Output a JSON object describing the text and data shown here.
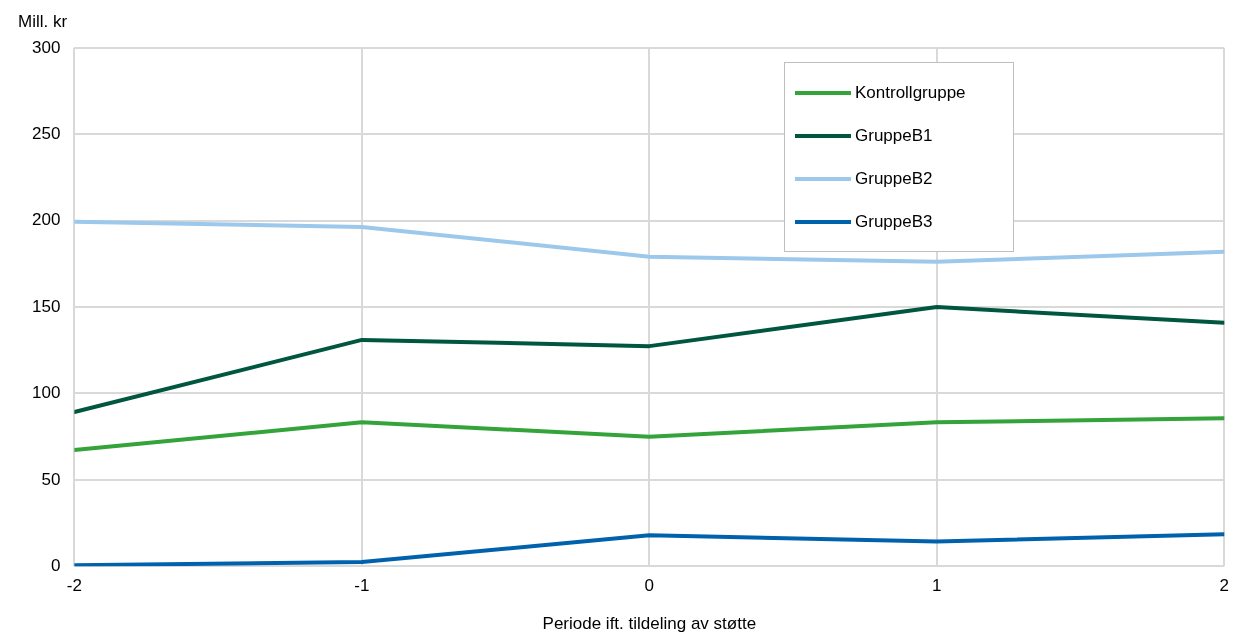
{
  "chart_data": {
    "type": "line",
    "xlabel": "Periode ift. tildeling av støtte",
    "ylabel": "Mill. kr",
    "x": [
      -2,
      -1,
      0,
      1,
      2
    ],
    "xlim": [
      -2,
      2
    ],
    "xticks": [
      -2,
      -1,
      0,
      1,
      2
    ],
    "ylim": [
      0,
      300
    ],
    "yticks": [
      0,
      50,
      100,
      150,
      200,
      250,
      300
    ],
    "grid": true,
    "legend": "top right",
    "marker": "none",
    "series": [
      {
        "name": "Kontrollgruppe",
        "color": "#33a33a",
        "values": [
          67.3,
          83.3,
          75,
          83.3,
          85.7
        ]
      },
      {
        "name": "GruppeB1",
        "color": "#00563f",
        "values": [
          89.3,
          131,
          127.4,
          150,
          141
        ]
      },
      {
        "name": "GruppeB2",
        "color": "#9cc8ec",
        "values": [
          199.4,
          196.4,
          179.2,
          176.2,
          182
        ]
      },
      {
        "name": "GruppeB3",
        "color": "#0062ad",
        "values": [
          0.6,
          2.4,
          17.9,
          14.3,
          18.5
        ]
      }
    ]
  }
}
